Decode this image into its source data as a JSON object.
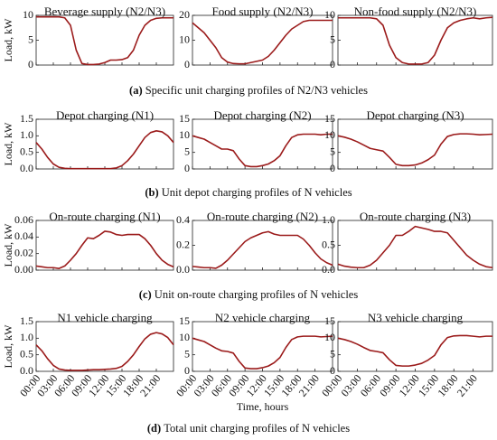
{
  "chart_data": [
    {
      "type": "line",
      "title": "Beverage supply (N2/N3)",
      "ylabel": "Load, kW",
      "color": "#9b1b1b",
      "x": [
        0,
        1,
        2,
        3,
        4,
        5,
        6,
        7,
        8,
        9,
        10,
        11,
        12,
        13,
        14,
        15,
        16,
        17,
        18,
        19,
        20,
        21,
        22,
        23,
        24
      ],
      "values": [
        9.7,
        9.7,
        9.7,
        9.7,
        9.7,
        9.5,
        8,
        3,
        0.3,
        0.1,
        0.1,
        0.2,
        0.5,
        1,
        1,
        1.1,
        1.5,
        3,
        6,
        8,
        9,
        9.4,
        9.5,
        9.5,
        9.5
      ],
      "xlim": [
        0,
        24
      ],
      "xticks": [
        0,
        3,
        6,
        9,
        12,
        15,
        18,
        21
      ],
      "ylim": [
        0,
        10
      ],
      "yticks": [
        0,
        5,
        10
      ]
    },
    {
      "type": "line",
      "title": "Food supply (N2/N3)",
      "color": "#9b1b1b",
      "x": [
        0,
        1,
        2,
        3,
        4,
        5,
        6,
        7,
        8,
        9,
        10,
        11,
        12,
        13,
        14,
        15,
        16,
        17,
        18,
        19,
        20,
        21,
        22,
        23,
        24
      ],
      "values": [
        17,
        15,
        13,
        10,
        7,
        3,
        1.2,
        0.6,
        0.5,
        0.5,
        1,
        1.5,
        2,
        3.5,
        6,
        9,
        12,
        14.5,
        16,
        17.5,
        18,
        18,
        18,
        18,
        18
      ],
      "xlim": [
        0,
        24
      ],
      "xticks": [
        0,
        3,
        6,
        9,
        12,
        15,
        18,
        21
      ],
      "ylim": [
        0,
        20
      ],
      "yticks": [
        0,
        10,
        20
      ]
    },
    {
      "type": "line",
      "title": "Non-food supply (N2/N3)",
      "color": "#9b1b1b",
      "x": [
        0,
        1,
        2,
        3,
        4,
        5,
        6,
        7,
        8,
        9,
        10,
        11,
        12,
        13,
        14,
        15,
        16,
        17,
        18,
        19,
        20,
        21,
        22,
        23,
        24
      ],
      "values": [
        9.5,
        9.5,
        9.5,
        9.5,
        9.5,
        9.5,
        9.3,
        8,
        4,
        1.5,
        0.5,
        0.2,
        0.2,
        0.2,
        0.5,
        2,
        5,
        7.5,
        8.5,
        9,
        9.3,
        9.5,
        9.3,
        9.5,
        9.6
      ],
      "xlim": [
        0,
        24
      ],
      "xticks": [
        0,
        3,
        6,
        9,
        12,
        15,
        18,
        21
      ],
      "ylim": [
        0,
        10
      ],
      "yticks": [
        0,
        5,
        10
      ]
    },
    {
      "type": "line",
      "title": "Depot charging (N1)",
      "ylabel": "Load, kW",
      "color": "#9b1b1b",
      "x": [
        0,
        1,
        2,
        3,
        4,
        5,
        6,
        7,
        8,
        9,
        10,
        11,
        12,
        13,
        14,
        15,
        16,
        17,
        18,
        19,
        20,
        21,
        22,
        23,
        24
      ],
      "values": [
        0.8,
        0.6,
        0.35,
        0.15,
        0.05,
        0.02,
        0.01,
        0.01,
        0.01,
        0.01,
        0.01,
        0.01,
        0.01,
        0.01,
        0.03,
        0.1,
        0.25,
        0.45,
        0.7,
        0.95,
        1.1,
        1.15,
        1.12,
        1.0,
        0.8
      ],
      "xlim": [
        0,
        24
      ],
      "xticks": [
        0,
        3,
        6,
        9,
        12,
        15,
        18,
        21
      ],
      "ylim": [
        0,
        1.5
      ],
      "yticks": [
        {
          "value": 0,
          "label": "0.0"
        },
        0.5,
        {
          "value": 1,
          "label": "1.0"
        },
        1.5
      ]
    },
    {
      "type": "line",
      "title": "Depot charging (N2)",
      "color": "#9b1b1b",
      "x": [
        0,
        1,
        2,
        3,
        4,
        5,
        6,
        7,
        8,
        9,
        10,
        11,
        12,
        13,
        14,
        15,
        16,
        17,
        18,
        19,
        20,
        21,
        22,
        23,
        24
      ],
      "values": [
        10,
        9.5,
        9,
        8,
        7,
        6,
        6,
        5.5,
        3,
        1,
        0.7,
        0.7,
        1,
        1.5,
        2.5,
        4,
        7,
        9.5,
        10.3,
        10.5,
        10.5,
        10.5,
        10.3,
        10.5,
        10.5
      ],
      "xlim": [
        0,
        24
      ],
      "xticks": [
        0,
        3,
        6,
        9,
        12,
        15,
        18,
        21
      ],
      "ylim": [
        0,
        15
      ],
      "yticks": [
        0,
        5,
        10,
        15
      ]
    },
    {
      "type": "line",
      "title": "Depot charging (N3)",
      "color": "#9b1b1b",
      "x": [
        0,
        1,
        2,
        3,
        4,
        5,
        6,
        7,
        8,
        9,
        10,
        11,
        12,
        13,
        14,
        15,
        16,
        17,
        18,
        19,
        20,
        21,
        22,
        23,
        24
      ],
      "values": [
        10,
        9.6,
        9,
        8.2,
        7.2,
        6.2,
        5.8,
        5.4,
        3.5,
        1.4,
        1,
        1,
        1.2,
        1.8,
        2.8,
        4.2,
        7.5,
        9.8,
        10.4,
        10.6,
        10.6,
        10.5,
        10.3,
        10.4,
        10.5
      ],
      "xlim": [
        0,
        24
      ],
      "xticks": [
        0,
        3,
        6,
        9,
        12,
        15,
        18,
        21
      ],
      "ylim": [
        0,
        15
      ],
      "yticks": [
        0,
        5,
        10,
        15
      ]
    },
    {
      "type": "line",
      "title": "On-route charging (N1)",
      "ylabel": "Load, kW",
      "color": "#9b1b1b",
      "x": [
        0,
        1,
        2,
        3,
        4,
        5,
        6,
        7,
        8,
        9,
        10,
        11,
        12,
        13,
        14,
        15,
        16,
        17,
        18,
        19,
        20,
        21,
        22,
        23,
        24
      ],
      "values": [
        0.005,
        0.004,
        0.003,
        0.003,
        0.002,
        0.005,
        0.012,
        0.02,
        0.03,
        0.039,
        0.038,
        0.042,
        0.047,
        0.046,
        0.043,
        0.042,
        0.043,
        0.043,
        0.043,
        0.038,
        0.03,
        0.02,
        0.012,
        0.007,
        0.004
      ],
      "xlim": [
        0,
        24
      ],
      "xticks": [
        0,
        3,
        6,
        9,
        12,
        15,
        18,
        21
      ],
      "ylim": [
        0,
        0.06
      ],
      "yticks": [
        {
          "value": 0,
          "label": "0.00"
        },
        {
          "value": 0.02,
          "label": "0.02"
        },
        {
          "value": 0.04,
          "label": "0.04"
        },
        {
          "value": 0.06,
          "label": "0.06"
        }
      ]
    },
    {
      "type": "line",
      "title": "On-route charging (N2)",
      "color": "#9b1b1b",
      "x": [
        0,
        1,
        2,
        3,
        4,
        5,
        6,
        7,
        8,
        9,
        10,
        11,
        12,
        13,
        14,
        15,
        16,
        17,
        18,
        19,
        20,
        21,
        22,
        23,
        24
      ],
      "values": [
        0.03,
        0.025,
        0.02,
        0.02,
        0.015,
        0.04,
        0.08,
        0.13,
        0.18,
        0.23,
        0.26,
        0.28,
        0.3,
        0.31,
        0.29,
        0.28,
        0.28,
        0.28,
        0.28,
        0.25,
        0.2,
        0.14,
        0.09,
        0.06,
        0.04
      ],
      "xlim": [
        0,
        24
      ],
      "xticks": [
        0,
        3,
        6,
        9,
        12,
        15,
        18,
        21
      ],
      "ylim": [
        0,
        0.4
      ],
      "yticks": [
        {
          "value": 0,
          "label": "0.0"
        },
        0.2,
        0.4
      ]
    },
    {
      "type": "line",
      "title": "On-route charging (N3)",
      "color": "#9b1b1b",
      "x": [
        0,
        1,
        2,
        3,
        4,
        5,
        6,
        7,
        8,
        9,
        10,
        11,
        12,
        13,
        14,
        15,
        16,
        17,
        18,
        19,
        20,
        21,
        22,
        23,
        24
      ],
      "values": [
        0.12,
        0.08,
        0.06,
        0.05,
        0.05,
        0.1,
        0.2,
        0.35,
        0.5,
        0.7,
        0.7,
        0.78,
        0.88,
        0.85,
        0.82,
        0.78,
        0.78,
        0.75,
        0.6,
        0.45,
        0.3,
        0.2,
        0.12,
        0.07,
        0.05
      ],
      "xlim": [
        0,
        24
      ],
      "xticks": [
        0,
        3,
        6,
        9,
        12,
        15,
        18,
        21
      ],
      "ylim": [
        0,
        1
      ],
      "yticks": [
        {
          "value": 0,
          "label": "0.0"
        },
        0.5,
        {
          "value": 1,
          "label": "1.0"
        }
      ]
    },
    {
      "type": "line",
      "title": "N1 vehicle charging",
      "ylabel": "Load, kW",
      "color": "#9b1b1b",
      "x": [
        0,
        1,
        2,
        3,
        4,
        5,
        6,
        7,
        8,
        9,
        10,
        11,
        12,
        13,
        14,
        15,
        16,
        17,
        18,
        19,
        20,
        21,
        22,
        23,
        24
      ],
      "values": [
        0.8,
        0.62,
        0.38,
        0.18,
        0.07,
        0.04,
        0.03,
        0.03,
        0.03,
        0.04,
        0.05,
        0.05,
        0.06,
        0.07,
        0.09,
        0.15,
        0.3,
        0.5,
        0.75,
        0.98,
        1.12,
        1.17,
        1.13,
        1.02,
        0.8
      ],
      "xlim": [
        0,
        24
      ],
      "xticks": [
        {
          "value": 0,
          "label": "00:00"
        },
        {
          "value": 3,
          "label": "03:00"
        },
        {
          "value": 6,
          "label": "06:00"
        },
        {
          "value": 9,
          "label": "09:00"
        },
        {
          "value": 12,
          "label": "12:00"
        },
        {
          "value": 15,
          "label": "15:00"
        },
        {
          "value": 18,
          "label": "18:00"
        },
        {
          "value": 21,
          "label": "21:00"
        }
      ],
      "ylim": [
        0,
        1.5
      ],
      "yticks": [
        {
          "value": 0,
          "label": "0.0"
        },
        0.5,
        {
          "value": 1,
          "label": "1.0"
        },
        1.5
      ]
    },
    {
      "type": "line",
      "title": "N2 vehicle charging",
      "xlabel": "Time, hours",
      "color": "#9b1b1b",
      "x": [
        0,
        1,
        2,
        3,
        4,
        5,
        6,
        7,
        8,
        9,
        10,
        11,
        12,
        13,
        14,
        15,
        16,
        17,
        18,
        19,
        20,
        21,
        22,
        23,
        24
      ],
      "values": [
        10,
        9.5,
        9,
        8,
        7,
        6.2,
        6,
        5.5,
        3,
        1,
        0.8,
        0.8,
        1.1,
        1.6,
        2.6,
        4.2,
        7.2,
        9.6,
        10.4,
        10.6,
        10.6,
        10.6,
        10.4,
        10.5,
        10.6
      ],
      "xlim": [
        0,
        24
      ],
      "xticks": [
        {
          "value": 0,
          "label": "00:00"
        },
        {
          "value": 3,
          "label": "03:00"
        },
        {
          "value": 6,
          "label": "06:00"
        },
        {
          "value": 9,
          "label": "09:00"
        },
        {
          "value": 12,
          "label": "12:00"
        },
        {
          "value": 15,
          "label": "15:00"
        },
        {
          "value": 18,
          "label": "18:00"
        },
        {
          "value": 21,
          "label": "21:00"
        }
      ],
      "ylim": [
        0,
        15
      ],
      "yticks": [
        0,
        5,
        10,
        15
      ]
    },
    {
      "type": "line",
      "title": "N3 vehicle charging",
      "color": "#9b1b1b",
      "x": [
        0,
        1,
        2,
        3,
        4,
        5,
        6,
        7,
        8,
        9,
        10,
        11,
        12,
        13,
        14,
        15,
        16,
        17,
        18,
        19,
        20,
        21,
        22,
        23,
        24
      ],
      "values": [
        10,
        9.6,
        9,
        8.2,
        7.2,
        6.3,
        6,
        5.6,
        3.5,
        1.8,
        1.6,
        1.6,
        1.9,
        2.4,
        3.4,
        4.8,
        8,
        10.2,
        10.7,
        10.8,
        10.8,
        10.6,
        10.4,
        10.6,
        10.6
      ],
      "xlim": [
        0,
        24
      ],
      "xticks": [
        {
          "value": 0,
          "label": "00:00"
        },
        {
          "value": 3,
          "label": "03:00"
        },
        {
          "value": 6,
          "label": "06:00"
        },
        {
          "value": 9,
          "label": "09:00"
        },
        {
          "value": 12,
          "label": "12:00"
        },
        {
          "value": 15,
          "label": "15:00"
        },
        {
          "value": 18,
          "label": "18:00"
        },
        {
          "value": 21,
          "label": "21:00"
        }
      ],
      "ylim": [
        0,
        15
      ],
      "yticks": [
        0,
        5,
        10,
        15
      ]
    }
  ],
  "captions": [
    {
      "label": "(a)",
      "text": "Specific unit charging profiles of N2/N3 vehicles"
    },
    {
      "label": "(b)",
      "text": "Unit depot charging profiles of N vehicles"
    },
    {
      "label": "(c)",
      "text": "Unit on-route charging profiles of N vehicles"
    },
    {
      "label": "(d)",
      "text": "Total unit charging profiles of N vehicles"
    }
  ]
}
